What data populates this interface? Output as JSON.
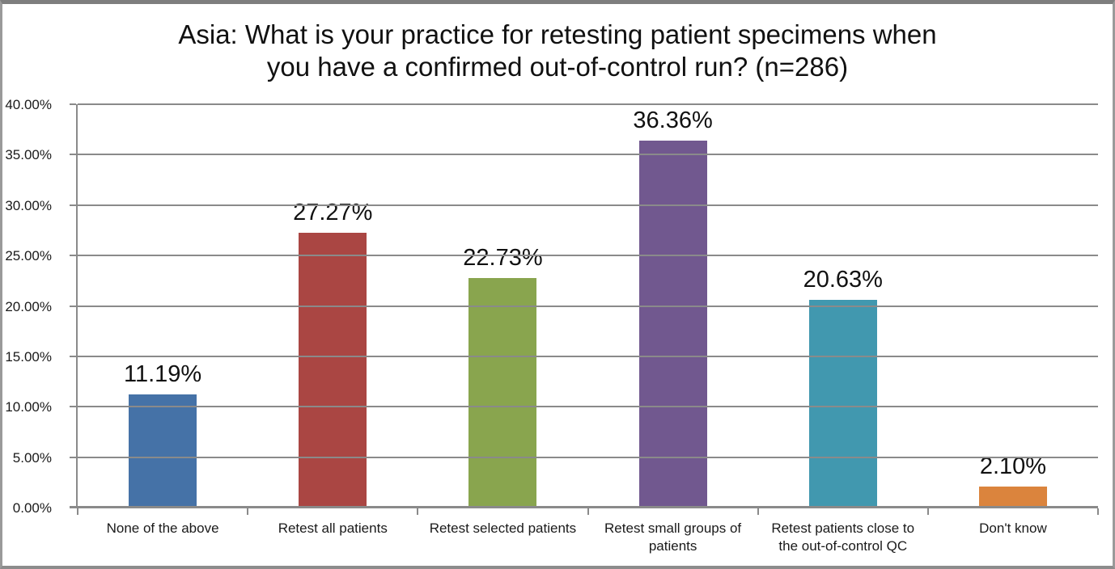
{
  "header": {
    "title_line1": "Asia: What is your practice for retesting patient specimens when",
    "title_line2": "you have a confirmed out-of-control run? (n=286)"
  },
  "chart_data": {
    "type": "bar",
    "title": "Asia: What is your practice for retesting patient specimens when you have a confirmed out-of-control run? (n=286)",
    "sample_label": "n=286",
    "categories": [
      "None of the above",
      "Retest all patients",
      "Retest selected patients",
      "Retest small groups of patients",
      "Retest patients close to the out-of-control QC",
      "Don't know"
    ],
    "values": [
      11.19,
      27.27,
      22.73,
      36.36,
      20.63,
      2.1
    ],
    "value_labels": [
      "11.19%",
      "27.27%",
      "22.73%",
      "36.36%",
      "20.63%",
      "2.10%"
    ],
    "bar_colors": [
      "#4572A7",
      "#AA4643",
      "#89A54E",
      "#71588F",
      "#4198AF",
      "#DB843D"
    ],
    "xlabel": "",
    "ylabel": "",
    "ylim": [
      0,
      40
    ],
    "ytick_values": [
      0,
      5,
      10,
      15,
      20,
      25,
      30,
      35,
      40
    ],
    "ytick_labels": [
      "0.00%",
      "5.00%",
      "10.00%",
      "15.00%",
      "20.00%",
      "25.00%",
      "30.00%",
      "35.00%",
      "40.00%"
    ],
    "grid": "horizontal-on",
    "legend": "none"
  },
  "style_colors": {
    "gridline": "#8a8a8a",
    "axis": "#8a8a8a",
    "text": "#111111"
  }
}
